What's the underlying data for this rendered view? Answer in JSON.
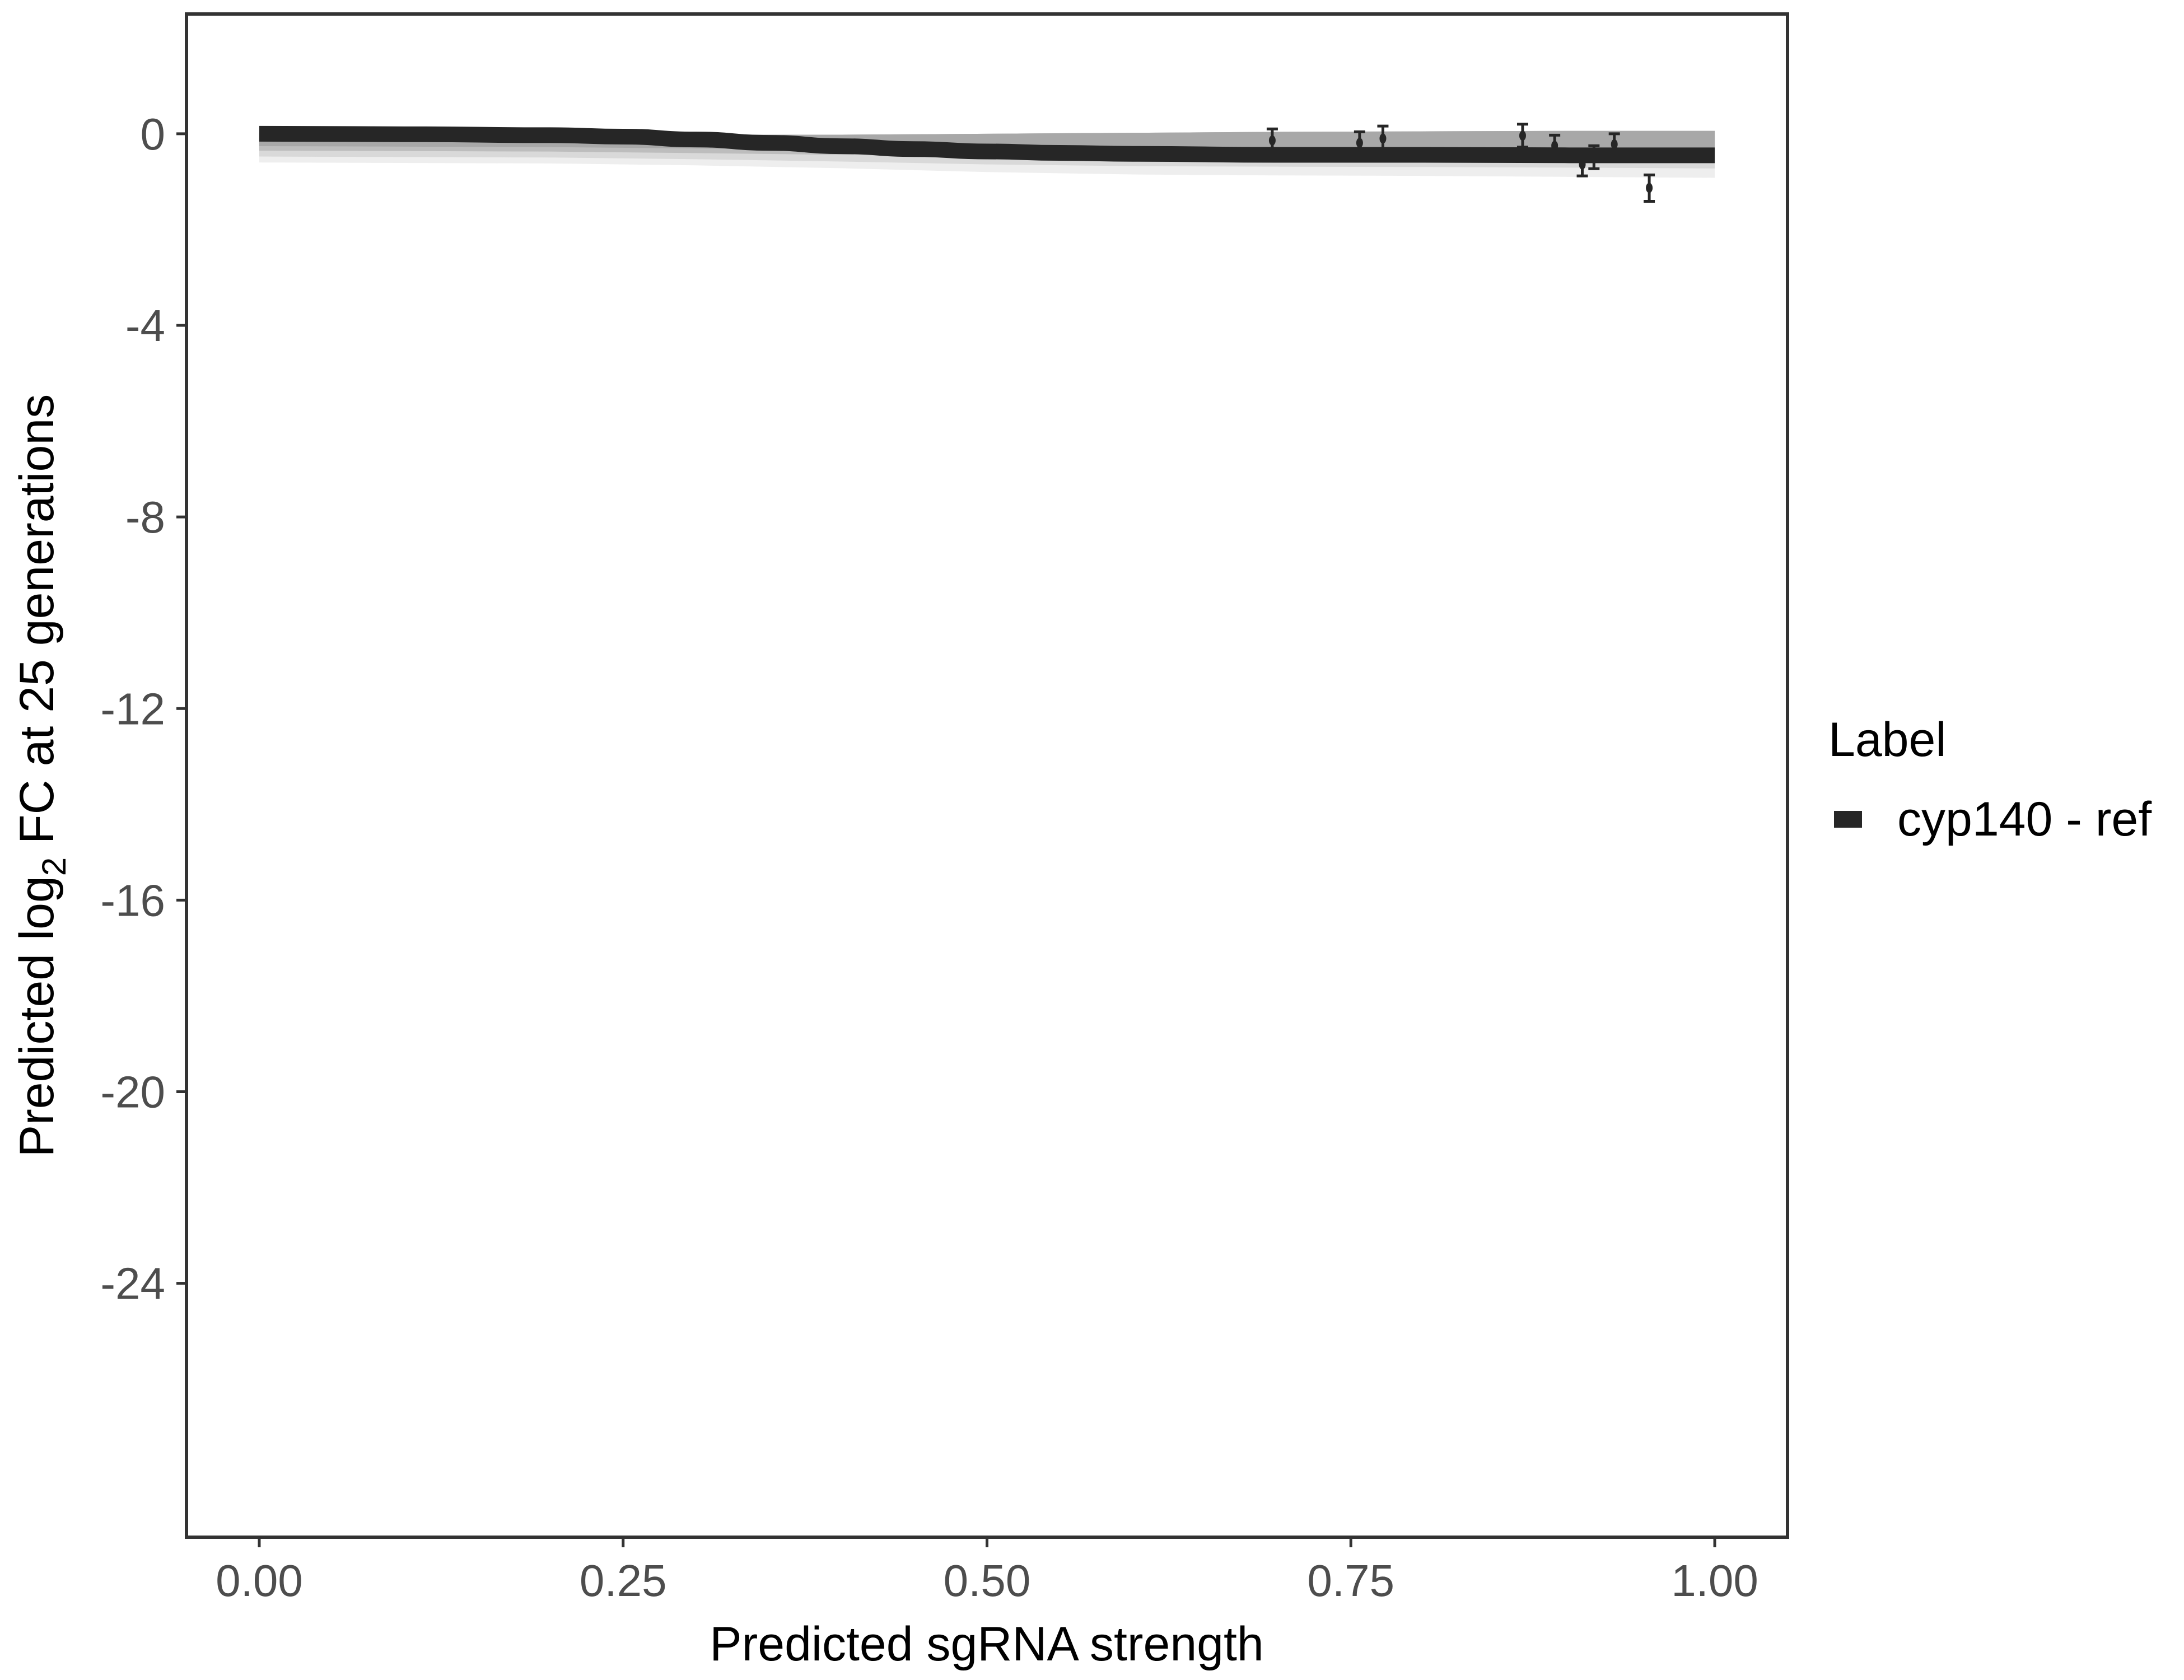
{
  "chart_data": {
    "type": "line",
    "title": "",
    "xlabel": "Predicted sgRNA strength",
    "ylabel_main": "Predicted  log",
    "ylabel_sub": "2",
    "ylabel_rest": " FC at 25 generations",
    "xlim": [
      -0.05,
      1.05
    ],
    "ylim": [
      -29.3,
      2.5
    ],
    "x_ticks": [
      "0.00",
      "0.25",
      "0.50",
      "0.75",
      "1.00"
    ],
    "x_tick_values": [
      0,
      0.25,
      0.5,
      0.75,
      1.0
    ],
    "y_ticks": [
      "0",
      "-4",
      "-8",
      "-12",
      "-16",
      "-20",
      "-24"
    ],
    "y_tick_values": [
      0,
      -4,
      -8,
      -12,
      -16,
      -20,
      -24
    ],
    "grid": false,
    "legend": {
      "title": "Label",
      "position": "right",
      "entries": [
        "cyp140 - ref"
      ]
    },
    "series": [
      {
        "name": "cyp140 - ref",
        "color": "#262626",
        "curve": {
          "x": [
            0,
            0.1,
            0.2,
            0.25,
            0.3,
            0.35,
            0.4,
            0.45,
            0.5,
            0.55,
            0.6,
            0.7,
            0.8,
            0.9,
            1.0
          ],
          "y": [
            0.0,
            -0.01,
            -0.03,
            -0.06,
            -0.12,
            -0.19,
            -0.26,
            -0.32,
            -0.37,
            -0.4,
            -0.42,
            -0.44,
            -0.44,
            -0.45,
            -0.45
          ]
        },
        "ribbon": {
          "x": [
            0,
            0.2,
            0.3,
            0.4,
            0.5,
            0.6,
            0.7,
            0.8,
            0.9,
            1.0
          ],
          "upper": [
            0.02,
            0.0,
            -0.02,
            -0.02,
            0.0,
            0.02,
            0.04,
            0.05,
            0.06,
            0.06
          ],
          "lower": [
            -0.6,
            -0.62,
            -0.66,
            -0.72,
            -0.8,
            -0.85,
            -0.87,
            -0.88,
            -0.9,
            -0.92
          ]
        },
        "points": {
          "x": [
            0.696,
            0.756,
            0.772,
            0.868,
            0.89,
            0.909,
            0.917,
            0.931,
            0.955
          ],
          "y": [
            -0.14,
            -0.19,
            -0.1,
            -0.04,
            -0.25,
            -0.64,
            -0.49,
            -0.22,
            -1.13
          ],
          "ymin": [
            -0.38,
            -0.42,
            -0.36,
            -0.28,
            -0.47,
            -0.88,
            -0.73,
            -0.44,
            -1.41
          ],
          "ymax": [
            0.1,
            0.04,
            0.16,
            0.2,
            -0.03,
            -0.4,
            -0.25,
            0.0,
            -0.86
          ]
        }
      }
    ]
  }
}
